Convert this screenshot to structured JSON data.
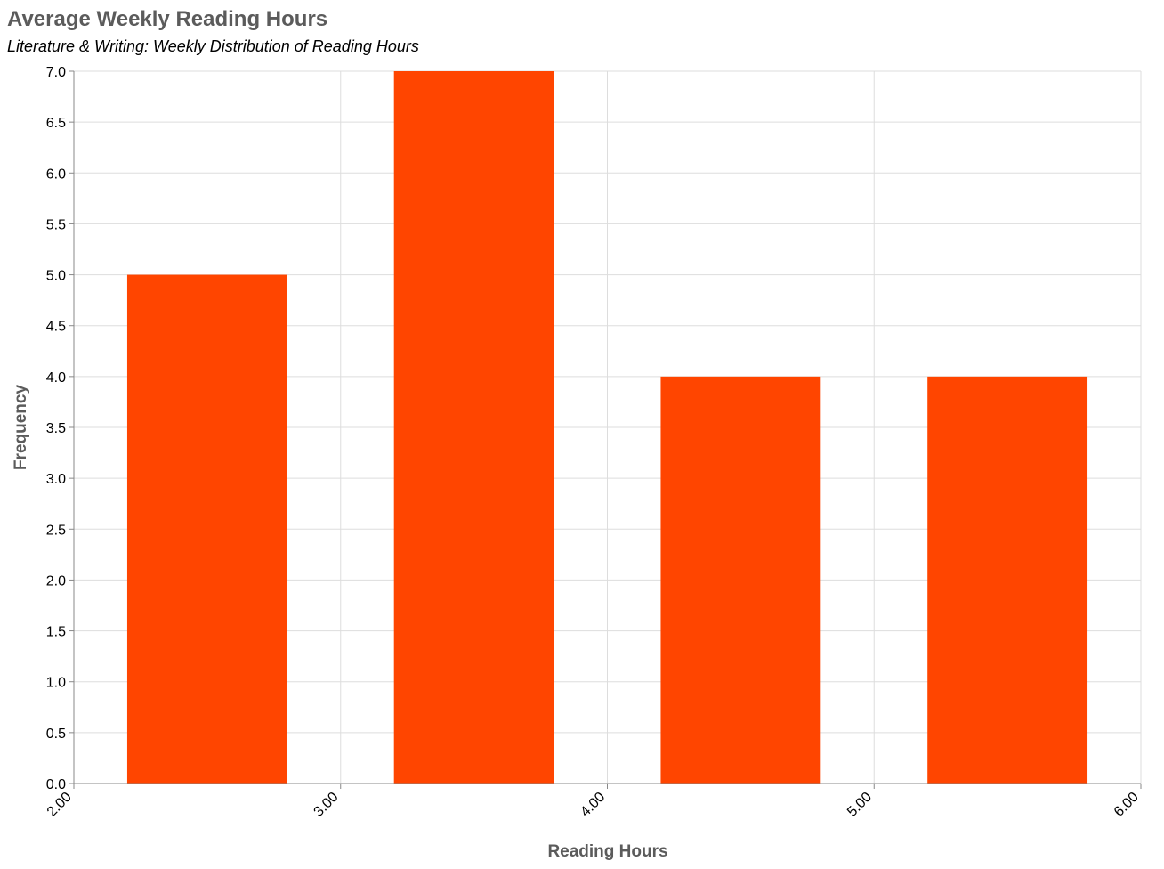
{
  "chart_data": {
    "type": "bar",
    "title": "Average Weekly Reading Hours",
    "subtitle": "Literature & Writing: Weekly Distribution of Reading Hours",
    "xlabel": "Reading Hours",
    "ylabel": "Frequency",
    "xlim": [
      2,
      6
    ],
    "ylim": [
      0,
      7
    ],
    "x_ticks": [
      "2.00",
      "3.00",
      "4.00",
      "5.00",
      "6.00"
    ],
    "y_ticks": [
      "0.0",
      "0.5",
      "1.0",
      "1.5",
      "2.0",
      "2.5",
      "3.0",
      "3.5",
      "4.0",
      "4.5",
      "5.0",
      "5.5",
      "6.0",
      "6.5",
      "7.0"
    ],
    "bins": [
      {
        "x0": 2.2,
        "x1": 2.8,
        "value": 5
      },
      {
        "x0": 3.2,
        "x1": 3.8,
        "value": 7
      },
      {
        "x0": 4.2,
        "x1": 4.8,
        "value": 4
      },
      {
        "x0": 5.2,
        "x1": 5.8,
        "value": 4
      }
    ],
    "grid": true,
    "bar_color": "#ff4500",
    "axis_color": "#888888",
    "title_color": "#5b5b5b",
    "label_color": "#000000"
  }
}
